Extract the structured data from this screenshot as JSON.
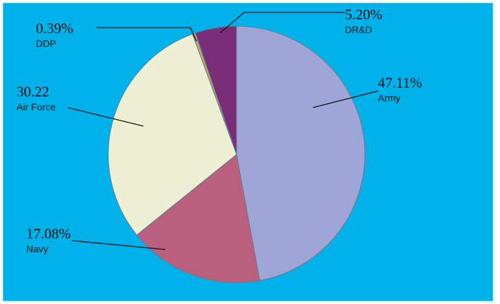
{
  "chart_data": {
    "type": "pie",
    "categories": [
      "Army",
      "Navy",
      "Air Force",
      "DDP",
      "DR&D"
    ],
    "values": [
      47.11,
      17.08,
      30.22,
      0.39,
      5.2
    ],
    "title": "",
    "slices": [
      {
        "name": "Army",
        "value": 47.11,
        "value_label": "47.11%",
        "color": "#9ea6d8"
      },
      {
        "name": "Navy",
        "value": 17.08,
        "value_label": "17.08%",
        "color": "#b9607f"
      },
      {
        "name": "Air Force",
        "value": 30.22,
        "value_label": "30.22",
        "color": "#eef0d6"
      },
      {
        "name": "DDP",
        "value": 0.39,
        "value_label": "0.39%",
        "color": "#b8a86e"
      },
      {
        "name": "DR&D",
        "value": 5.2,
        "value_label": "5.20%",
        "color": "#7a2d79"
      }
    ],
    "start": "12 o'clock",
    "direction": "clockwise",
    "legend": "none"
  },
  "colors": {
    "background": "#00b1ea",
    "frame": "#ffffff",
    "slice_border": "#6a7a8e",
    "text": "#111111"
  }
}
